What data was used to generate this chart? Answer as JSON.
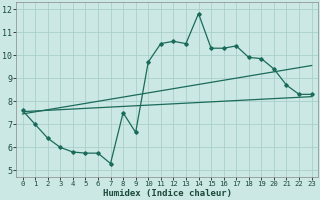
{
  "xlabel": "Humidex (Indice chaleur)",
  "xlim": [
    -0.5,
    23.5
  ],
  "ylim": [
    4.7,
    12.3
  ],
  "xticks": [
    0,
    1,
    2,
    3,
    4,
    5,
    6,
    7,
    8,
    9,
    10,
    11,
    12,
    13,
    14,
    15,
    16,
    17,
    18,
    19,
    20,
    21,
    22,
    23
  ],
  "yticks": [
    5,
    6,
    7,
    8,
    9,
    10,
    11,
    12
  ],
  "background_color": "#cce8e4",
  "grid_color": "#aacfcb",
  "line_color": "#1a6b5a",
  "line1_x": [
    0,
    1,
    2,
    3,
    4,
    5,
    6,
    7,
    8,
    9,
    10,
    11,
    12,
    13,
    14,
    15,
    16,
    17,
    18,
    19,
    20,
    21,
    22,
    23
  ],
  "line1_y": [
    7.6,
    7.0,
    6.4,
    6.0,
    5.8,
    5.75,
    5.75,
    5.3,
    7.5,
    6.65,
    9.7,
    10.5,
    10.6,
    10.5,
    11.8,
    10.3,
    10.3,
    10.4,
    9.9,
    9.85,
    9.4,
    8.7,
    8.3,
    8.3
  ],
  "line2_x": [
    0,
    23
  ],
  "line2_y": [
    7.55,
    8.2
  ],
  "line3_x": [
    0,
    23
  ],
  "line3_y": [
    7.45,
    9.55
  ],
  "xlabel_fontsize": 6.5,
  "tick_fontsize_x": 5.2,
  "tick_fontsize_y": 6.0
}
